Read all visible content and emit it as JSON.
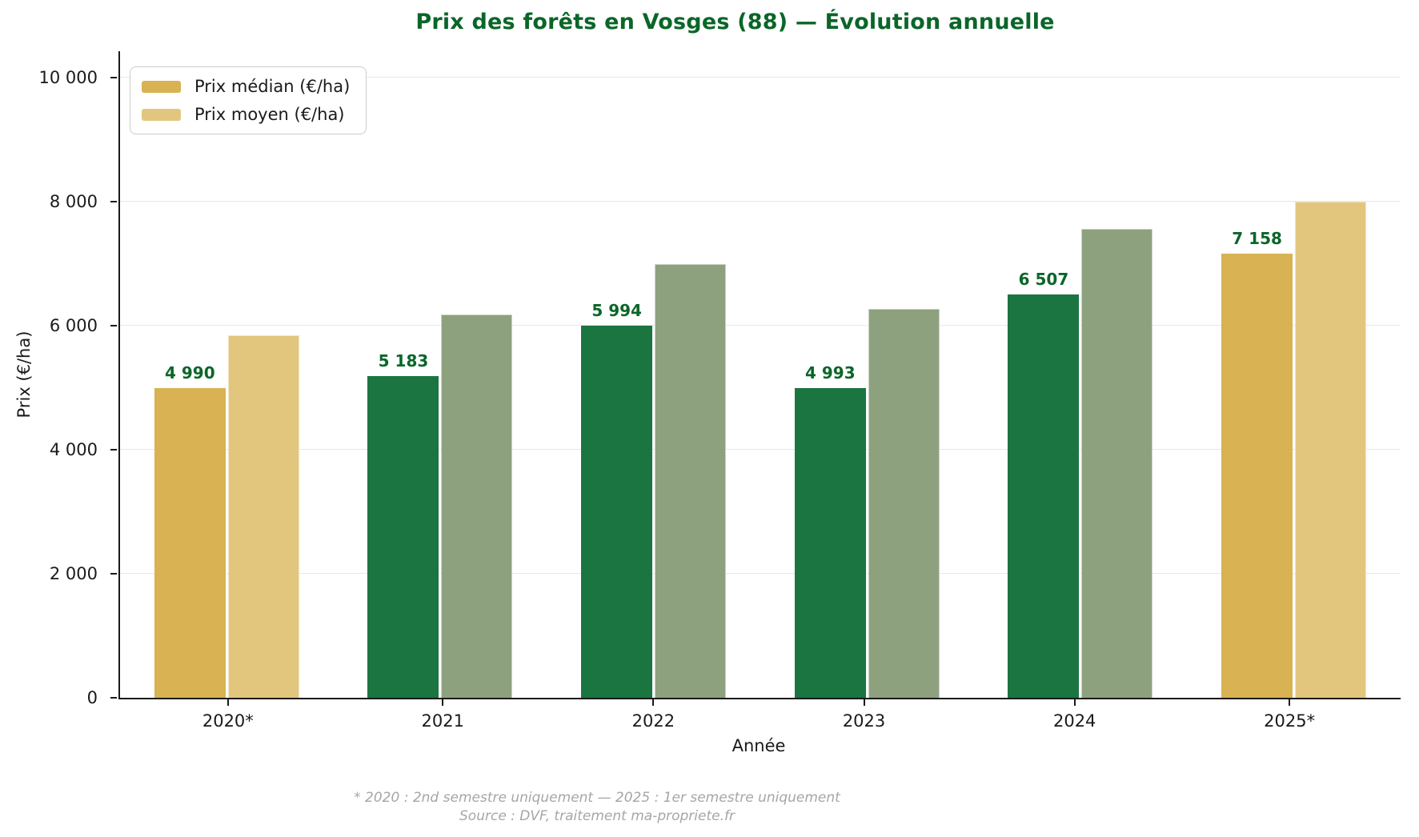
{
  "title": "Prix des forêts en Vosges (88) — Évolution annuelle",
  "chart_data": {
    "type": "bar",
    "title": "Prix des forêts en Vosges (88) — Évolution annuelle",
    "categories": [
      "2020*",
      "2021",
      "2022",
      "2023",
      "2024",
      "2025*"
    ],
    "series": [
      {
        "name": "Prix médian (€/ha)",
        "values": [
          4990,
          5183,
          5994,
          4993,
          6507,
          7158
        ],
        "value_labels": [
          "4 990",
          "5 183",
          "5 994",
          "4 993",
          "6 507",
          "7 158"
        ]
      },
      {
        "name": "Prix moyen (€/ha)",
        "values": [
          5850,
          6180,
          6990,
          6270,
          7560,
          8000
        ],
        "value_labels": []
      }
    ],
    "xlabel": "Année",
    "ylabel": "Prix (€/ha)",
    "ylim": [
      0,
      10000
    ],
    "yticks": [
      0,
      2000,
      4000,
      6000,
      8000,
      10000
    ],
    "ytick_labels": [
      "0",
      "2 000",
      "4 000",
      "6 000",
      "8 000",
      "10 000"
    ],
    "grid": "horizontal",
    "legend_position": "upper-left",
    "colors": {
      "median_green": "#1b7540",
      "mean_green": "#8ea17e",
      "median_gold": "#d8b253",
      "mean_gold": "#e3c67e",
      "gold_group_indexes": [
        0,
        5
      ],
      "title_green": "#0a6628",
      "value_label_green": "#0a6628",
      "gridline": "#e7e7e7",
      "axis": "#1a1a1a",
      "footnote_gray": "#a6a6a6"
    }
  },
  "legend": {
    "items": [
      {
        "label": "Prix médian (€/ha)",
        "color": "#d8b253"
      },
      {
        "label": "Prix moyen (€/ha)",
        "color": "#e3c67e"
      }
    ]
  },
  "footnote": {
    "line1": "* 2020 : 2nd semestre uniquement — 2025 : 1er semestre uniquement",
    "line2": "Source : DVF, traitement ma-propriete.fr"
  }
}
